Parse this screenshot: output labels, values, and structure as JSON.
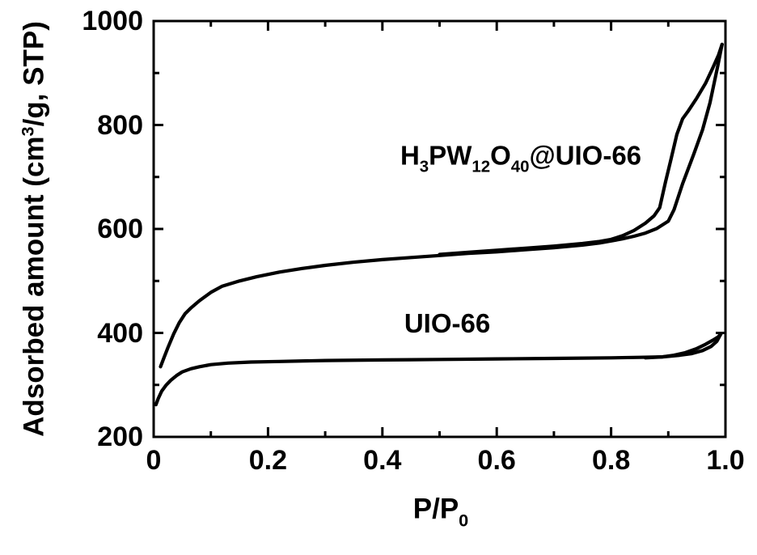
{
  "figure": {
    "background": "#ffffff",
    "ink": "#000000"
  },
  "chart_data": {
    "type": "line",
    "title": "",
    "xlabel": "P/P0",
    "xlabel_parts": [
      {
        "t": "P/P"
      },
      {
        "t": "0",
        "sub": true
      }
    ],
    "ylabel": "Adsorbed amount (cm3/g, STP)",
    "ylabel_parts": [
      {
        "t": "Adsorbed amount (cm"
      },
      {
        "t": "3",
        "sup": true
      },
      {
        "t": "/g, STP)"
      }
    ],
    "xlim": [
      0,
      1.0
    ],
    "ylim": [
      200,
      1000
    ],
    "x_major_ticks": [
      0,
      0.2,
      0.4,
      0.6,
      0.8,
      1.0
    ],
    "x_tick_labels": [
      "0",
      "0.2",
      "0.4",
      "0.6",
      "0.8",
      "1.0"
    ],
    "x_minor_ticks": [
      0.1,
      0.3,
      0.5,
      0.7,
      0.9
    ],
    "y_major_ticks": [
      200,
      400,
      600,
      800,
      1000
    ],
    "y_tick_labels": [
      "200",
      "400",
      "600",
      "800",
      "1000"
    ],
    "y_minor_ticks": [
      300,
      500,
      700,
      900
    ],
    "grid": false,
    "legend_position": "inline-annotations",
    "line_color": "#000000",
    "series": [
      {
        "name": "H3PW12O40@UIO-66 adsorption",
        "points": [
          [
            0.012,
            335
          ],
          [
            0.018,
            352
          ],
          [
            0.025,
            372
          ],
          [
            0.035,
            398
          ],
          [
            0.045,
            420
          ],
          [
            0.055,
            437
          ],
          [
            0.065,
            448
          ],
          [
            0.08,
            462
          ],
          [
            0.1,
            478
          ],
          [
            0.12,
            490
          ],
          [
            0.15,
            500
          ],
          [
            0.18,
            508
          ],
          [
            0.22,
            517
          ],
          [
            0.26,
            524
          ],
          [
            0.3,
            530
          ],
          [
            0.35,
            536
          ],
          [
            0.4,
            541
          ],
          [
            0.45,
            545
          ],
          [
            0.5,
            549
          ],
          [
            0.55,
            553
          ],
          [
            0.6,
            556
          ],
          [
            0.65,
            560
          ],
          [
            0.7,
            564
          ],
          [
            0.75,
            569
          ],
          [
            0.78,
            573
          ],
          [
            0.8,
            577
          ],
          [
            0.82,
            581
          ],
          [
            0.84,
            586
          ],
          [
            0.86,
            592
          ],
          [
            0.88,
            601
          ],
          [
            0.9,
            615
          ],
          [
            0.91,
            637
          ],
          [
            0.925,
            687
          ],
          [
            0.945,
            745
          ],
          [
            0.96,
            791
          ],
          [
            0.973,
            843
          ],
          [
            0.987,
            916
          ],
          [
            0.994,
            955
          ]
        ]
      },
      {
        "name": "H3PW12O40@UIO-66 desorption",
        "points": [
          [
            0.5,
            551
          ],
          [
            0.55,
            555
          ],
          [
            0.6,
            559
          ],
          [
            0.65,
            563
          ],
          [
            0.7,
            567
          ],
          [
            0.75,
            572
          ],
          [
            0.78,
            576
          ],
          [
            0.8,
            580
          ],
          [
            0.82,
            587
          ],
          [
            0.84,
            597
          ],
          [
            0.86,
            611
          ],
          [
            0.875,
            625
          ],
          [
            0.885,
            641
          ],
          [
            0.895,
            690
          ],
          [
            0.905,
            735
          ],
          [
            0.915,
            782
          ],
          [
            0.925,
            812
          ],
          [
            0.935,
            827
          ],
          [
            0.95,
            852
          ],
          [
            0.965,
            880
          ],
          [
            0.978,
            910
          ],
          [
            0.988,
            935
          ],
          [
            0.994,
            955
          ]
        ]
      },
      {
        "name": "UIO-66 adsorption",
        "points": [
          [
            0.004,
            262
          ],
          [
            0.008,
            274
          ],
          [
            0.014,
            288
          ],
          [
            0.022,
            300
          ],
          [
            0.03,
            309
          ],
          [
            0.04,
            318
          ],
          [
            0.05,
            325
          ],
          [
            0.065,
            331
          ],
          [
            0.08,
            335
          ],
          [
            0.1,
            339
          ],
          [
            0.13,
            342
          ],
          [
            0.17,
            344
          ],
          [
            0.22,
            345
          ],
          [
            0.3,
            347
          ],
          [
            0.4,
            348
          ],
          [
            0.5,
            349
          ],
          [
            0.6,
            350
          ],
          [
            0.7,
            351
          ],
          [
            0.8,
            352
          ],
          [
            0.85,
            353
          ],
          [
            0.89,
            354
          ],
          [
            0.92,
            357
          ],
          [
            0.94,
            360
          ],
          [
            0.96,
            366
          ],
          [
            0.975,
            374
          ],
          [
            0.985,
            384
          ],
          [
            0.992,
            398
          ]
        ]
      },
      {
        "name": "UIO-66 desorption",
        "points": [
          [
            0.86,
            352
          ],
          [
            0.89,
            354
          ],
          [
            0.91,
            357
          ],
          [
            0.93,
            362
          ],
          [
            0.95,
            370
          ],
          [
            0.965,
            378
          ],
          [
            0.978,
            386
          ],
          [
            0.987,
            392
          ],
          [
            0.992,
            398
          ]
        ]
      }
    ],
    "annotations": [
      {
        "id": "hpw",
        "text": "H3PW12O40@UIO-66",
        "parts": [
          {
            "t": "H"
          },
          {
            "t": "3",
            "sub": true
          },
          {
            "t": "PW"
          },
          {
            "t": "12",
            "sub": true
          },
          {
            "t": "O"
          },
          {
            "t": "40",
            "sub": true
          },
          {
            "t": "@UIO-66"
          }
        ]
      },
      {
        "id": "uio",
        "text": "UIO-66",
        "parts": [
          {
            "t": "UIO-66"
          }
        ]
      }
    ]
  }
}
